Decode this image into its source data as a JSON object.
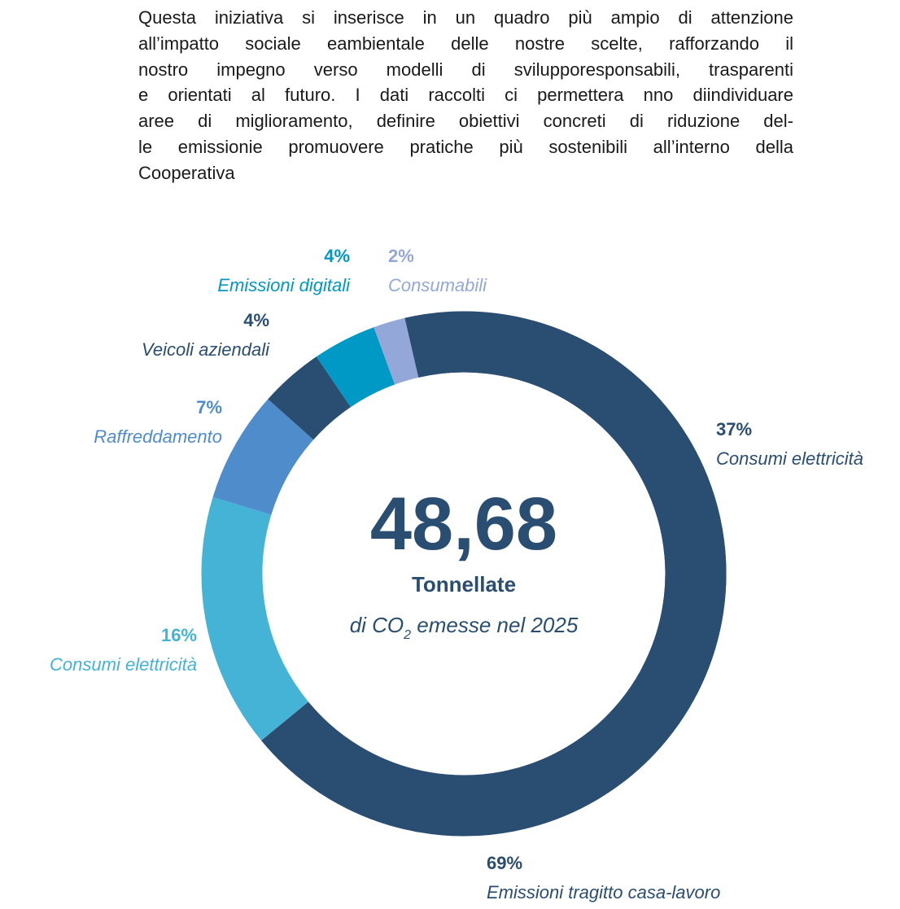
{
  "paragraph": [
    "Questa iniziativa si inserisce in un quadro più ampio di attenzione",
    "all’impatto sociale eambientale delle nostre scelte, rafforzando il",
    "nostro impegno verso modelli di svilupporesponsabili, trasparenti",
    "e orientati al futuro. I dati raccolti ci permettera nno diindividuare",
    "aree di miglioramento, definire obiettivi concreti di riduzione del-",
    "le emissionie promuovere pratiche più sostenibili all’interno della",
    "Cooperativa"
  ],
  "chart_data": {
    "type": "donut",
    "center_value": "48,68",
    "center_label": "Tonnellate",
    "center_sub": [
      "di CO",
      "2",
      " emesse nel 2025"
    ],
    "categories": [
      "Emissioni tragitto casa-lavoro",
      "Consumi elettricità",
      "Raffreddamento",
      "Veicoli aziendali",
      "Emissioni digitali",
      "Consumabili"
    ],
    "values": [
      69,
      16,
      7,
      4,
      4,
      2
    ],
    "value_labels": [
      "69%",
      "16%",
      "7%",
      "4%",
      "4%",
      "2%"
    ],
    "colors": [
      "#2a4d72",
      "#45b3d6",
      "#4e8ccb",
      "#2a4d72",
      "#0098c4",
      "#93a8d8"
    ],
    "overlay": {
      "name": "Consumi elettricità",
      "value": 37,
      "value_label": "37%",
      "color": "#2a4d72"
    }
  }
}
